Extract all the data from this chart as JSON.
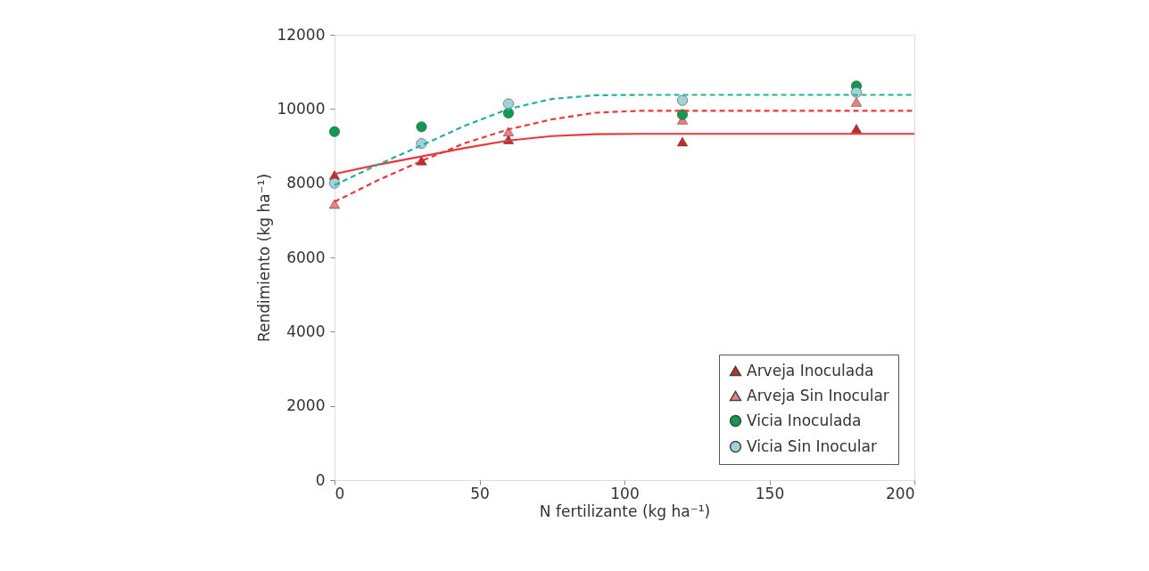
{
  "chart_data": {
    "type": "scatter",
    "xlabel": "N fertilizante (kg ha⁻¹)",
    "ylabel": "Rendimiento (kg ha⁻¹)",
    "xlim": [
      0,
      200
    ],
    "xticks": [
      0,
      50,
      100,
      150,
      200
    ],
    "ylim": [
      0,
      12000
    ],
    "yticks": [
      0,
      2000,
      4000,
      6000,
      8000,
      10000,
      12000
    ],
    "grid": false,
    "legend": "bottom right",
    "series": [
      {
        "name": "Arveja Inoculada",
        "color": "#c8282a",
        "marker": "triangle",
        "x": [
          0,
          30,
          60,
          120,
          180
        ],
        "values": [
          8220,
          8610,
          9180,
          9120,
          9470
        ]
      },
      {
        "name": "Arveja Sin Inocular",
        "color": "#f08080",
        "marker": "triangle",
        "x": [
          0,
          30,
          60,
          120,
          180
        ],
        "values": [
          7440,
          null,
          9390,
          9710,
          10190
        ]
      },
      {
        "name": "Vicia Inoculada",
        "color": "#109a50",
        "marker": "circle",
        "x": [
          0,
          30,
          60,
          120,
          180
        ],
        "values": [
          9390,
          9520,
          9890,
          9850,
          10620
        ]
      },
      {
        "name": "Vicia Sin Inocular",
        "color": "#9fd3d8",
        "marker": "circle",
        "x": [
          0,
          30,
          60,
          120,
          180
        ],
        "values": [
          8000,
          9070,
          10140,
          10230,
          10450
        ]
      },
      {
        "type": "line",
        "color": "#e8383c",
        "line_style": "solid",
        "marker": "none",
        "x": [
          0,
          15,
          30,
          45,
          60,
          75,
          90,
          105,
          200
        ],
        "values": [
          8250,
          8500,
          8720,
          8950,
          9150,
          9270,
          9320,
          9330,
          9330
        ]
      },
      {
        "type": "line",
        "color": "#e8383c",
        "line_style": "dashed",
        "marker": "none",
        "x": [
          0,
          15,
          30,
          45,
          60,
          75,
          90,
          105,
          200
        ],
        "values": [
          7500,
          8080,
          8600,
          9080,
          9450,
          9720,
          9900,
          9950,
          9950
        ]
      },
      {
        "type": "line",
        "color": "#22b0a0",
        "line_style": "dashed",
        "marker": "none",
        "x": [
          0,
          15,
          30,
          45,
          60,
          75,
          90,
          105,
          200
        ],
        "values": [
          7950,
          8500,
          9020,
          9550,
          10000,
          10270,
          10370,
          10380,
          10380
        ]
      }
    ]
  }
}
